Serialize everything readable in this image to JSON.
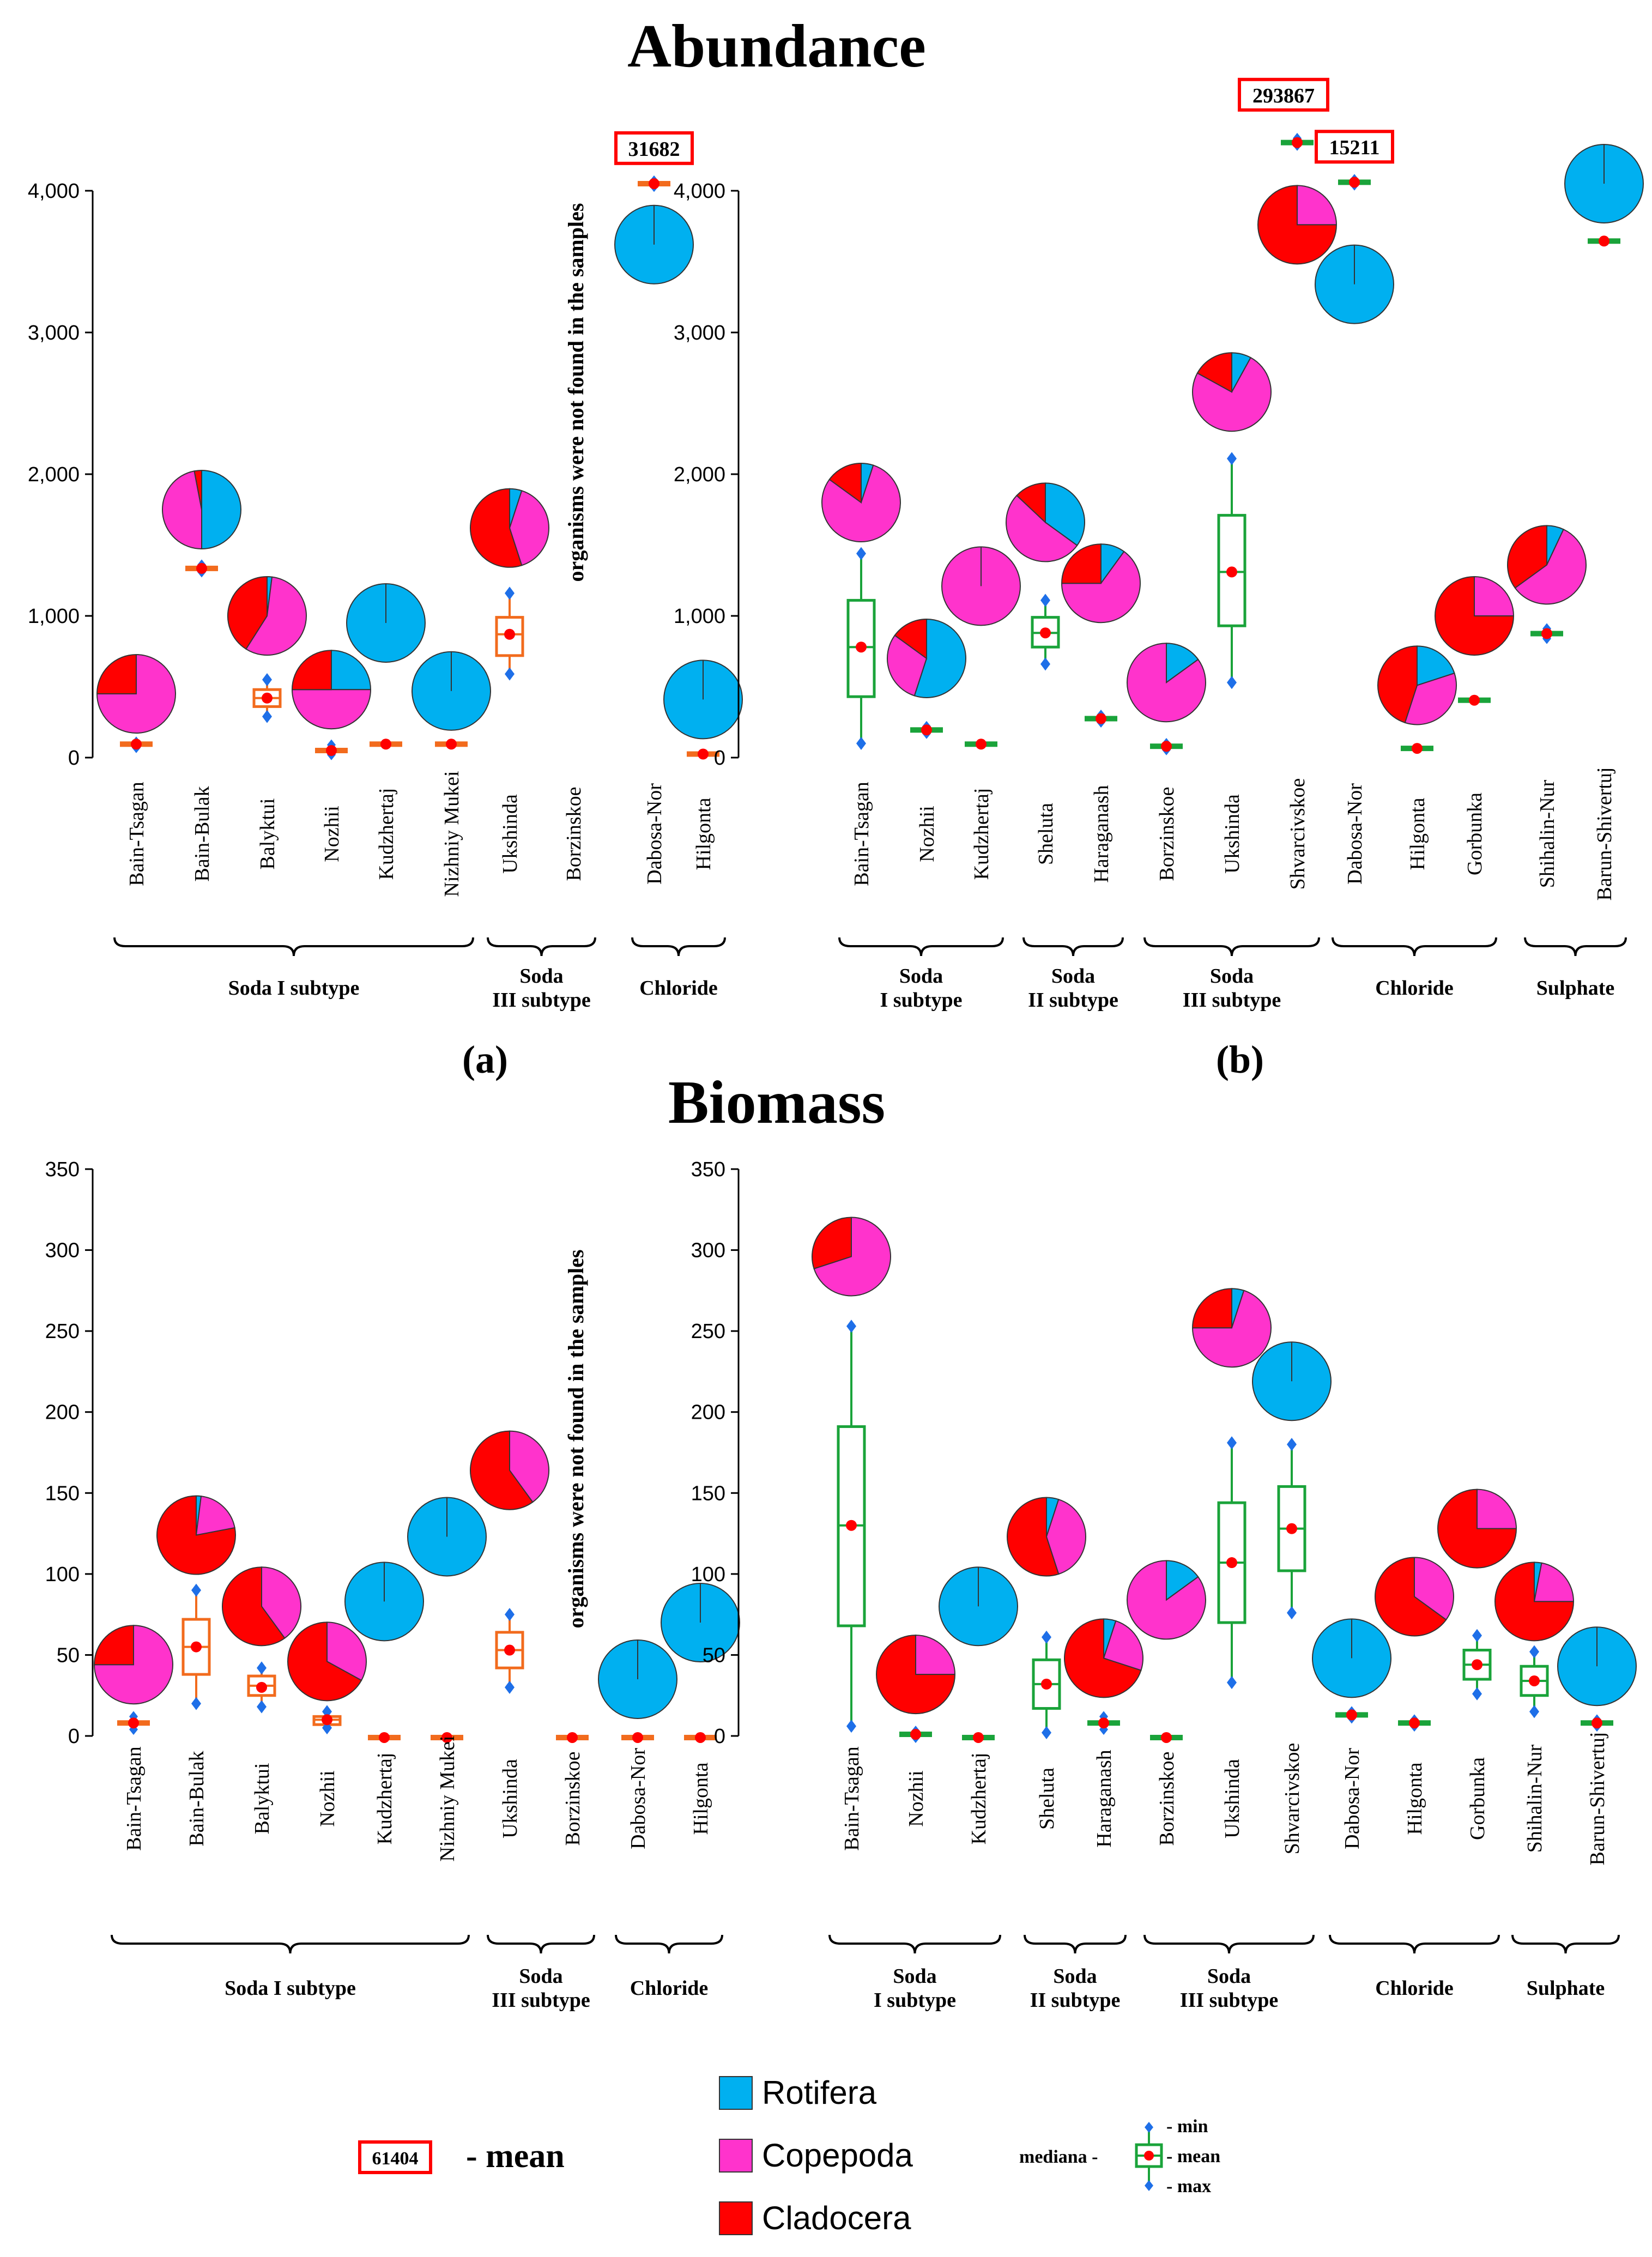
{
  "titles": {
    "abundance": "Abundance",
    "biomass": "Biomass",
    "panel_a": "(a)",
    "panel_b": "(b)"
  },
  "note": "organisms were not found in the samples",
  "colors": {
    "rotifera": "#00B0F0",
    "copepoda": "#FF33CC",
    "cladocera": "#FF0000",
    "box_a": "#F26B1D",
    "box_b": "#1AA33A",
    "mean_dot": "#FF0000",
    "minmax": "#1E6FE8",
    "callout": "#FF0000"
  },
  "legend": {
    "rotifera": "Rotifera",
    "copepoda": "Copepoda",
    "cladocera": "Cladocera",
    "mean_example_value": "61404",
    "mean_example_label": "- mean",
    "mediana": "mediana -",
    "min": "- min",
    "mean": "- mean",
    "max": "- max"
  },
  "chart_data": [
    {
      "id": "abundance_a",
      "type": "box+pie",
      "ylim": [
        0,
        4000
      ],
      "yticks": [
        "0",
        "1,000",
        "2,000",
        "3,000",
        "4,000"
      ],
      "categories": [
        "Bain-Tsagan",
        "Bain-Bulak",
        "Balyktui",
        "Nozhii",
        "Kudzhertaj",
        "Nizhniy Mukei",
        "Ukshinda",
        "Borzinskoe",
        "Dabosa-Nor",
        "Hilgonta"
      ],
      "groups": [
        {
          "name": "Soda I subtype",
          "from": 0,
          "to": 5
        },
        {
          "name": "Soda\nIII subtype",
          "from": 6,
          "to": 7
        },
        {
          "name": "Chloride",
          "from": 8,
          "to": 9
        }
      ],
      "boxes": [
        {
          "min": 70,
          "q1": 90,
          "median": 95,
          "q3": 100,
          "max": 110,
          "mean": 95
        },
        {
          "min": 1310,
          "q1": 1325,
          "median": 1335,
          "q3": 1345,
          "max": 1360,
          "mean": 1335
        },
        {
          "min": 290,
          "q1": 360,
          "median": 420,
          "q3": 480,
          "max": 550,
          "mean": 420
        },
        {
          "min": 20,
          "q1": 35,
          "median": 50,
          "q3": 65,
          "max": 90,
          "mean": 50
        },
        {
          "min": 85,
          "q1": 90,
          "median": 95,
          "q3": 100,
          "max": 105,
          "mean": 95
        },
        {
          "min": 85,
          "q1": 90,
          "median": 95,
          "q3": 100,
          "max": 105,
          "mean": 95
        },
        {
          "min": 590,
          "q1": 720,
          "median": 870,
          "q3": 990,
          "max": 1160,
          "mean": 870
        },
        null,
        {
          "min": 4030,
          "q1": 4040,
          "median": 4050,
          "q3": 4060,
          "max": 4070,
          "mean": 4050,
          "callout": "31682"
        },
        {
          "min": 15,
          "q1": 20,
          "median": 25,
          "q3": 30,
          "max": 35,
          "mean": 25
        }
      ],
      "pies": [
        {
          "y": 450,
          "rot": 0,
          "cop": 75,
          "cla": 25
        },
        {
          "y": 1750,
          "rot": 50,
          "cop": 47,
          "cla": 3
        },
        {
          "y": 1000,
          "rot": 2,
          "cop": 57,
          "cla": 41
        },
        {
          "y": 480,
          "rot": 25,
          "cop": 50,
          "cla": 25
        },
        {
          "y": 950,
          "rot": 100,
          "cop": 0,
          "cla": 0
        },
        {
          "y": 470,
          "rot": 100,
          "cop": 0,
          "cla": 0
        },
        {
          "y": 1620,
          "rot": 5,
          "cop": 40,
          "cla": 55
        },
        null,
        {
          "y": 3620,
          "rot": 100,
          "cop": 0,
          "cla": 0
        },
        {
          "y": 410,
          "rot": 100,
          "cop": 0,
          "cla": 0
        }
      ]
    },
    {
      "id": "abundance_b",
      "type": "box+pie",
      "ylim": [
        0,
        4000
      ],
      "yticks": [
        "0",
        "1,000",
        "2,000",
        "3,000",
        "4,000"
      ],
      "categories": [
        "Bain-Tsagan",
        "Nozhii",
        "Kudzhertaj",
        "Sheluta",
        "Haraganash",
        "Borzinskoe",
        "Ukshinda",
        "Shvarcivskoe",
        "Dabosa-Nor",
        "Hilgonta",
        "Gorbunka",
        "Shihalin-Nur",
        "Barun-Shivertuj"
      ],
      "groups": [
        {
          "name": "Soda\nI subtype",
          "from": 0,
          "to": 2
        },
        {
          "name": "Soda\nII subtype",
          "from": 3,
          "to": 4
        },
        {
          "name": "Soda\nIII subtype",
          "from": 5,
          "to": 7
        },
        {
          "name": "Chloride",
          "from": 8,
          "to": 10
        },
        {
          "name": "Sulphate",
          "from": 11,
          "to": 12
        }
      ],
      "boxes": [
        {
          "min": 100,
          "q1": 430,
          "median": 780,
          "q3": 1110,
          "max": 1440,
          "mean": 780
        },
        {
          "min": 170,
          "q1": 185,
          "median": 195,
          "q3": 205,
          "max": 220,
          "mean": 195
        },
        {
          "min": 85,
          "q1": 90,
          "median": 95,
          "q3": 100,
          "max": 105,
          "mean": 95
        },
        {
          "min": 660,
          "q1": 780,
          "median": 880,
          "q3": 990,
          "max": 1110,
          "mean": 880
        },
        {
          "min": 250,
          "q1": 265,
          "median": 275,
          "q3": 285,
          "max": 300,
          "mean": 275
        },
        {
          "min": 55,
          "q1": 70,
          "median": 80,
          "q3": 90,
          "max": 100,
          "mean": 80
        },
        {
          "min": 530,
          "q1": 930,
          "median": 1310,
          "q3": 1710,
          "max": 2110,
          "mean": 1310
        },
        {
          "min": 4320,
          "q1": 4330,
          "median": 4340,
          "q3": 4350,
          "max": 4370,
          "mean": 4340,
          "callout": "293867"
        },
        {
          "min": 4040,
          "q1": 4050,
          "median": 4060,
          "q3": 4070,
          "max": 4080,
          "mean": 4060,
          "callout": "15211"
        },
        {
          "min": 55,
          "q1": 60,
          "median": 65,
          "q3": 70,
          "max": 75,
          "mean": 65
        },
        {
          "min": 390,
          "q1": 400,
          "median": 405,
          "q3": 410,
          "max": 420,
          "mean": 405
        },
        {
          "min": 840,
          "q1": 860,
          "median": 875,
          "q3": 890,
          "max": 910,
          "mean": 875
        },
        {
          "min": 3630,
          "q1": 3640,
          "median": 3645,
          "q3": 3650,
          "max": 3660,
          "mean": 3645
        }
      ],
      "pies": [
        {
          "y": 1800,
          "rot": 5,
          "cop": 80,
          "cla": 15
        },
        {
          "y": 700,
          "rot": 55,
          "cop": 30,
          "cla": 15
        },
        {
          "y": 1210,
          "rot": 0,
          "cop": 100,
          "cla": 0
        },
        {
          "y": 1660,
          "rot": 35,
          "cop": 52,
          "cla": 13
        },
        {
          "y": 1230,
          "rot": 10,
          "cop": 65,
          "cla": 25
        },
        {
          "y": 530,
          "rot": 15,
          "cop": 85,
          "cla": 0
        },
        {
          "y": 2580,
          "rot": 8,
          "cop": 75,
          "cla": 17
        },
        {
          "y": 3760,
          "rot": 0,
          "cop": 25,
          "cla": 75
        },
        {
          "y": 3340,
          "rot": 100,
          "cop": 0,
          "cla": 0
        },
        {
          "y": 510,
          "rot": 20,
          "cop": 35,
          "cla": 45
        },
        {
          "y": 1000,
          "rot": 0,
          "cop": 25,
          "cla": 75
        },
        {
          "y": 1360,
          "rot": 7,
          "cop": 58,
          "cla": 35
        },
        {
          "y": 4050,
          "rot": 100,
          "cop": 0,
          "cla": 0
        }
      ]
    },
    {
      "id": "biomass_a",
      "type": "box+pie",
      "ylim": [
        0,
        350
      ],
      "yticks": [
        "0",
        "50",
        "100",
        "150",
        "200",
        "250",
        "300",
        "350"
      ],
      "categories": [
        "Bain-Tsagan",
        "Bain-Bulak",
        "Balyktui",
        "Nozhii",
        "Kudzhertaj",
        "Nizhniy Mukei",
        "Ukshinda",
        "Borzinskoe",
        "Dabosa-Nor",
        "Hilgonta"
      ],
      "groups": [
        {
          "name": "Soda I subtype",
          "from": 0,
          "to": 5
        },
        {
          "name": "Soda\nIII subtype",
          "from": 6,
          "to": 7
        },
        {
          "name": "Chloride",
          "from": 8,
          "to": 9
        }
      ],
      "boxes": [
        {
          "min": 4,
          "q1": 6,
          "median": 8,
          "q3": 10,
          "max": 12,
          "mean": 8
        },
        {
          "min": 20,
          "q1": 38,
          "median": 55,
          "q3": 72,
          "max": 90,
          "mean": 55
        },
        {
          "min": 18,
          "q1": 25,
          "median": 31,
          "q3": 37,
          "max": 42,
          "mean": 30
        },
        {
          "min": 5,
          "q1": 7,
          "median": 10,
          "q3": 12,
          "max": 15,
          "mean": 10
        },
        {
          "min": -2,
          "q1": -1,
          "median": -1,
          "q3": 0,
          "max": 0,
          "mean": -1
        },
        {
          "min": -2,
          "q1": -1,
          "median": -1,
          "q3": 0,
          "max": 0,
          "mean": -1
        },
        {
          "min": 30,
          "q1": 42,
          "median": 53,
          "q3": 64,
          "max": 75,
          "mean": 53
        },
        {
          "min": -2,
          "q1": -1,
          "median": -1,
          "q3": 0,
          "max": 0,
          "mean": -1
        },
        {
          "min": -2,
          "q1": -1,
          "median": -1,
          "q3": 0,
          "max": 0,
          "mean": -1
        },
        {
          "min": -2,
          "q1": -1,
          "median": -1,
          "q3": 0,
          "max": 0,
          "mean": -1
        }
      ],
      "pies": [
        {
          "y": 44,
          "rot": 0,
          "cop": 75,
          "cla": 25
        },
        {
          "y": 124,
          "rot": 2,
          "cop": 20,
          "cla": 78
        },
        {
          "y": 80,
          "rot": 0,
          "cop": 40,
          "cla": 60
        },
        {
          "y": 46,
          "rot": 0,
          "cop": 33,
          "cla": 67
        },
        {
          "y": 83,
          "rot": 100,
          "cop": 0,
          "cla": 0
        },
        {
          "y": 123,
          "rot": 100,
          "cop": 0,
          "cla": 0
        },
        {
          "y": 164,
          "rot": 0,
          "cop": 40,
          "cla": 60
        },
        null,
        {
          "y": 35,
          "rot": 100,
          "cop": 0,
          "cla": 0
        },
        {
          "y": 70,
          "rot": 100,
          "cop": 0,
          "cla": 0
        }
      ]
    },
    {
      "id": "biomass_b",
      "type": "box+pie",
      "ylim": [
        0,
        350
      ],
      "yticks": [
        "0",
        "50",
        "100",
        "150",
        "200",
        "250",
        "300",
        "350"
      ],
      "categories": [
        "Bain-Tsagan",
        "Nozhii",
        "Kudzhertaj",
        "Sheluta",
        "Haraganash",
        "Borzinskoe",
        "Ukshinda",
        "Shvarcivskoe",
        "Dabosa-Nor",
        "Hilgonta",
        "Gorbunka",
        "Shihalin-Nur",
        "Barun-Shivertuj"
      ],
      "groups": [
        {
          "name": "Soda\nI subtype",
          "from": 0,
          "to": 2
        },
        {
          "name": "Soda\nII subtype",
          "from": 3,
          "to": 4
        },
        {
          "name": "Soda\nIII subtype",
          "from": 5,
          "to": 7
        },
        {
          "name": "Chloride",
          "from": 8,
          "to": 10
        },
        {
          "name": "Sulphate",
          "from": 11,
          "to": 12
        }
      ],
      "boxes": [
        {
          "min": 6,
          "q1": 68,
          "median": 130,
          "q3": 191,
          "max": 253,
          "mean": 130
        },
        {
          "min": -1,
          "q1": 0,
          "median": 1,
          "q3": 2,
          "max": 3,
          "mean": 1
        },
        {
          "min": -2,
          "q1": -1,
          "median": -1,
          "q3": 0,
          "max": 0,
          "mean": -1
        },
        {
          "min": 2,
          "q1": 17,
          "median": 32,
          "q3": 47,
          "max": 61,
          "mean": 32
        },
        {
          "min": 4,
          "q1": 6,
          "median": 8,
          "q3": 10,
          "max": 12,
          "mean": 8
        },
        {
          "min": -2,
          "q1": -1,
          "median": -1,
          "q3": 0,
          "max": 0,
          "mean": -1
        },
        {
          "min": 33,
          "q1": 70,
          "median": 107,
          "q3": 144,
          "max": 181,
          "mean": 107
        },
        {
          "min": 76,
          "q1": 102,
          "median": 128,
          "q3": 154,
          "max": 180,
          "mean": 128
        },
        {
          "min": 11,
          "q1": 12,
          "median": 13,
          "q3": 14,
          "max": 15,
          "mean": 13
        },
        {
          "min": 6,
          "q1": 7,
          "median": 8,
          "q3": 9,
          "max": 10,
          "mean": 8
        },
        {
          "min": 26,
          "q1": 35,
          "median": 44,
          "q3": 53,
          "max": 62,
          "mean": 44
        },
        {
          "min": 15,
          "q1": 25,
          "median": 34,
          "q3": 43,
          "max": 52,
          "mean": 34
        },
        {
          "min": 6,
          "q1": 7,
          "median": 8,
          "q3": 9,
          "max": 10,
          "mean": 8
        }
      ],
      "pies": [
        {
          "y": 296,
          "rot": 0,
          "cop": 70,
          "cla": 30
        },
        {
          "y": 38,
          "rot": 0,
          "cop": 25,
          "cla": 75
        },
        {
          "y": 80,
          "rot": 100,
          "cop": 0,
          "cla": 0
        },
        {
          "y": 123,
          "rot": 5,
          "cop": 40,
          "cla": 55
        },
        {
          "y": 48,
          "rot": 5,
          "cop": 25,
          "cla": 70
        },
        {
          "y": 84,
          "rot": 15,
          "cop": 85,
          "cla": 0
        },
        {
          "y": 252,
          "rot": 5,
          "cop": 70,
          "cla": 25
        },
        {
          "y": 219,
          "rot": 100,
          "cop": 0,
          "cla": 0
        },
        {
          "y": 48,
          "rot": 100,
          "cop": 0,
          "cla": 0
        },
        {
          "y": 86,
          "rot": 0,
          "cop": 35,
          "cla": 65
        },
        {
          "y": 128,
          "rot": 0,
          "cop": 25,
          "cla": 75
        },
        {
          "y": 83,
          "rot": 3,
          "cop": 22,
          "cla": 75
        },
        {
          "y": 43,
          "rot": 100,
          "cop": 0,
          "cla": 0
        }
      ]
    }
  ]
}
